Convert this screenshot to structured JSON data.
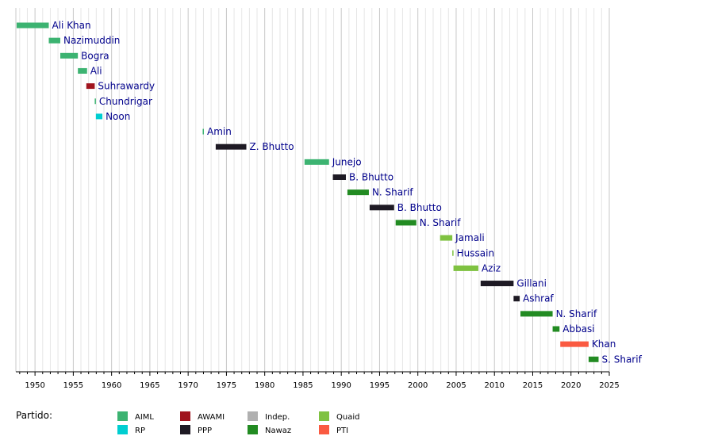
{
  "chart_data": {
    "type": "bar",
    "orientation": "horizontal-timeline",
    "xlim": [
      1947.5,
      2025
    ],
    "x_ticks": [
      1950,
      1955,
      1960,
      1965,
      1970,
      1975,
      1980,
      1985,
      1990,
      1995,
      2000,
      2005,
      2010,
      2015,
      2020,
      2025
    ],
    "grid": true,
    "legend": {
      "title": "Partido:",
      "placement": "bottom",
      "entries": [
        {
          "key": "AIML",
          "label": "AIML",
          "color": "#3cb371"
        },
        {
          "key": "RP",
          "label": "RP",
          "color": "#00ced1"
        },
        {
          "key": "AWAMI",
          "label": "AWAMI",
          "color": "#a0141e"
        },
        {
          "key": "PPP",
          "label": "PPP",
          "color": "#1e1a24"
        },
        {
          "key": "Indep",
          "label": "Indep.",
          "color": "#b0b0b0"
        },
        {
          "key": "Nawaz",
          "label": "Nawaz",
          "color": "#228b22"
        },
        {
          "key": "Quaid",
          "label": "Quaid",
          "color": "#7fc241"
        },
        {
          "key": "PTI",
          "label": "PTI",
          "color": "#fa5a41"
        }
      ]
    },
    "series": [
      {
        "label": "Ali Khan",
        "party": "AIML",
        "start": 1947.6,
        "end": 1951.8
      },
      {
        "label": "Nazimuddin",
        "party": "AIML",
        "start": 1951.8,
        "end": 1953.3
      },
      {
        "label": "Bogra",
        "party": "AIML",
        "start": 1953.3,
        "end": 1955.6
      },
      {
        "label": "Ali",
        "party": "AIML",
        "start": 1955.6,
        "end": 1956.8
      },
      {
        "label": "Suhrawardy",
        "party": "AWAMI",
        "start": 1956.7,
        "end": 1957.8
      },
      {
        "label": "Chundrigar",
        "party": "AIML",
        "start": 1957.8,
        "end": 1957.95
      },
      {
        "label": "Noon",
        "party": "RP",
        "start": 1957.95,
        "end": 1958.8
      },
      {
        "label": "Amin",
        "party": "AIML",
        "start": 1971.9,
        "end": 1972.0
      },
      {
        "label": "Z. Bhutto",
        "party": "PPP",
        "start": 1973.6,
        "end": 1977.6
      },
      {
        "label": "Junejo",
        "party": "AIML",
        "start": 1985.2,
        "end": 1988.4
      },
      {
        "label": "B. Bhutto",
        "party": "PPP",
        "start": 1988.9,
        "end": 1990.6
      },
      {
        "label": "N. Sharif",
        "party": "Nawaz",
        "start": 1990.8,
        "end": 1993.6
      },
      {
        "label": "B. Bhutto",
        "party": "PPP",
        "start": 1993.7,
        "end": 1996.9
      },
      {
        "label": "N. Sharif",
        "party": "Nawaz",
        "start": 1997.1,
        "end": 1999.8
      },
      {
        "label": "Jamali",
        "party": "Quaid",
        "start": 2002.9,
        "end": 2004.5
      },
      {
        "label": "Hussain",
        "party": "Quaid",
        "start": 2004.5,
        "end": 2004.65
      },
      {
        "label": "Aziz",
        "party": "Quaid",
        "start": 2004.65,
        "end": 2007.9
      },
      {
        "label": "Gillani",
        "party": "PPP",
        "start": 2008.2,
        "end": 2012.5
      },
      {
        "label": "Ashraf",
        "party": "PPP",
        "start": 2012.5,
        "end": 2013.3
      },
      {
        "label": "N. Sharif",
        "party": "Nawaz",
        "start": 2013.4,
        "end": 2017.6
      },
      {
        "label": "Abbasi",
        "party": "Nawaz",
        "start": 2017.6,
        "end": 2018.5
      },
      {
        "label": "Khan",
        "party": "PTI",
        "start": 2018.6,
        "end": 2022.3
      },
      {
        "label": "S. Sharif",
        "party": "Nawaz",
        "start": 2022.3,
        "end": 2023.6
      }
    ]
  }
}
